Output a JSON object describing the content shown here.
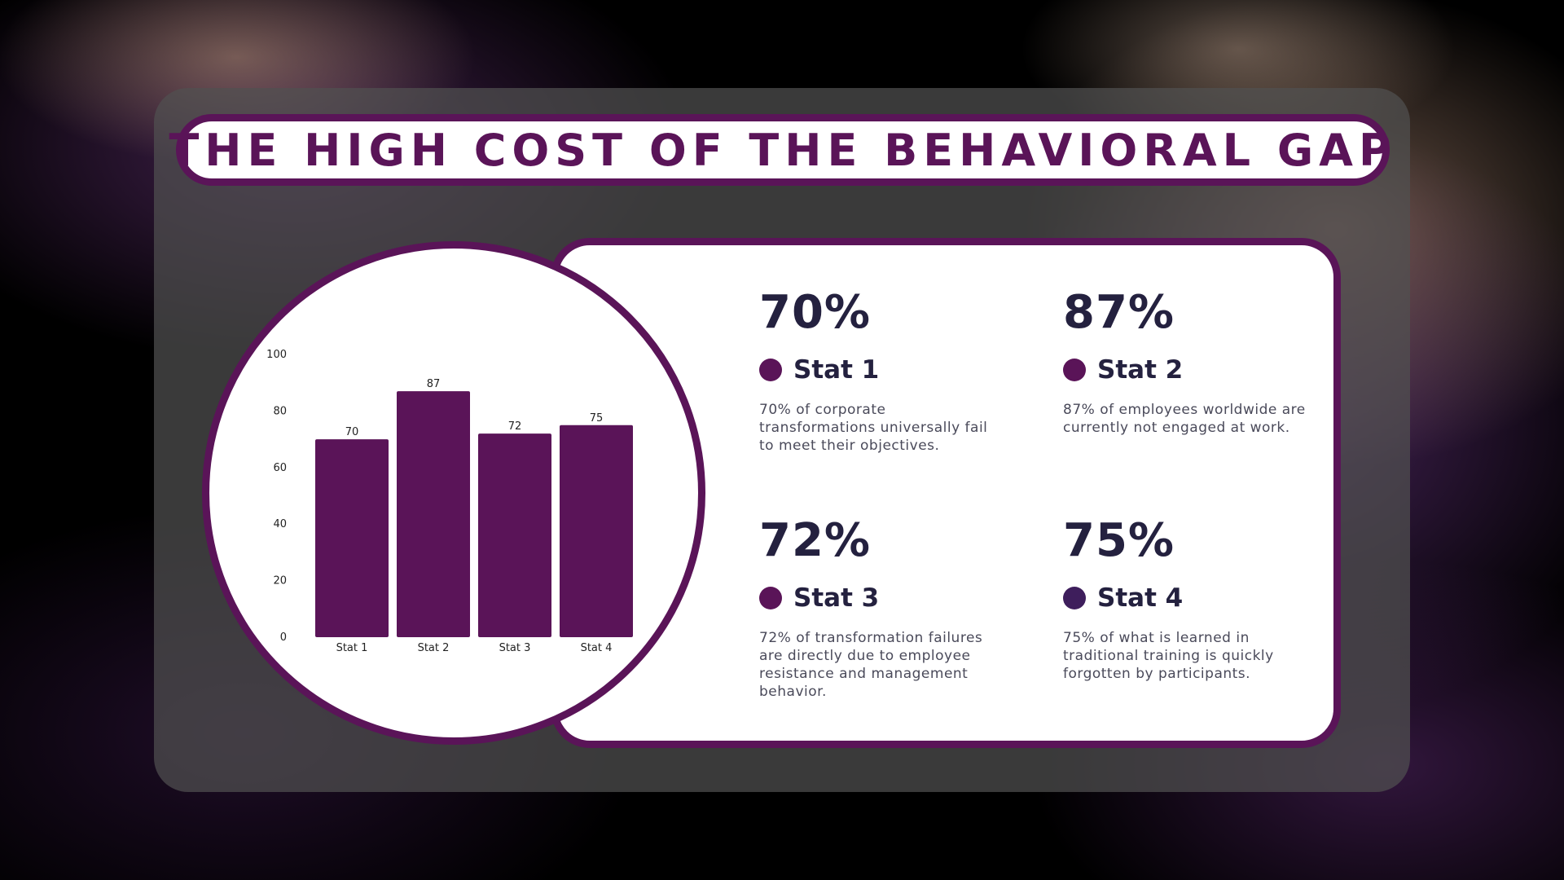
{
  "title": "THE HIGH COST OF THE BEHAVIORAL GAP",
  "colors": {
    "accent": "#5a1458",
    "text_dark": "#24213f",
    "dot_stat4": "#3e1e5c"
  },
  "stats": [
    {
      "value": "70%",
      "label": "Stat 1",
      "description": "70% of corporate transformations universally fail to meet their objectives.",
      "dot_color": "#5a1458"
    },
    {
      "value": "87%",
      "label": "Stat 2",
      "description": "87% of employees worldwide are currently not engaged at work.",
      "dot_color": "#5a1458"
    },
    {
      "value": "72%",
      "label": "Stat 3",
      "description": "72% of transformation failures are directly due to employee resistance and management behavior.",
      "dot_color": "#5a1458"
    },
    {
      "value": "75%",
      "label": "Stat 4",
      "description": "75% of what is learned in traditional training is quickly forgotten by participants.",
      "dot_color": "#3e1e5c"
    }
  ],
  "chart_data": {
    "type": "bar",
    "categories": [
      "Stat 1",
      "Stat 2",
      "Stat 3",
      "Stat 4"
    ],
    "values": [
      70,
      87,
      72,
      75
    ],
    "data_labels": [
      "70",
      "87",
      "72",
      "75"
    ],
    "ylim": [
      0,
      100
    ],
    "yticks": [
      0,
      20,
      40,
      60,
      80,
      100
    ],
    "ytick_labels": [
      "0",
      "20",
      "40",
      "60",
      "80",
      "100"
    ],
    "bar_color": "#5a1458",
    "grid": false,
    "legend": "none"
  }
}
